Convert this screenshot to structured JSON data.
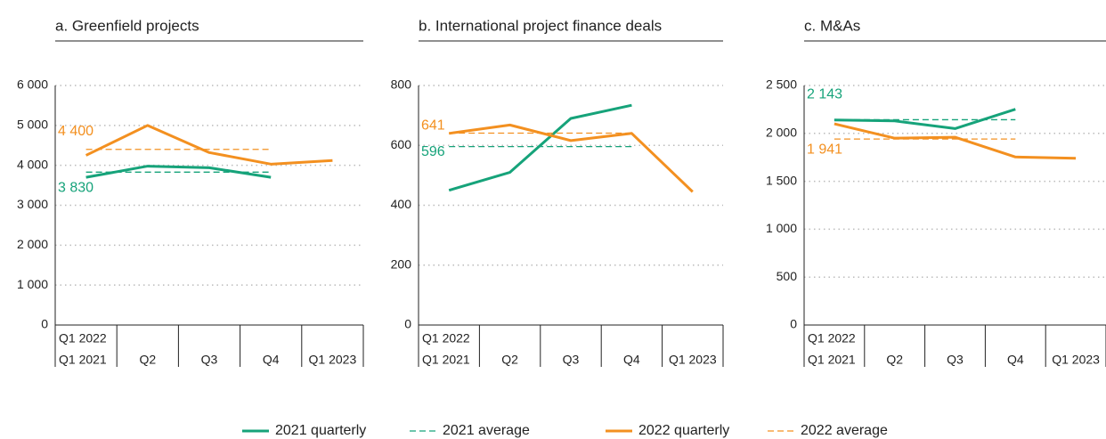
{
  "legend": [
    {
      "name": "2021 quarterly",
      "color": "#16a37a",
      "dashed": false
    },
    {
      "name": "2021 average",
      "color": "#16a37a",
      "dashed": true
    },
    {
      "name": "2022 quarterly",
      "color": "#f39020",
      "dashed": false
    },
    {
      "name": "2022 average",
      "color": "#f39020",
      "dashed": true
    }
  ],
  "chart_data": [
    {
      "type": "line",
      "title": "a. Greenfield projects",
      "categories": [
        [
          "Q1 2022",
          "Q1 2021"
        ],
        "Q2",
        "Q3",
        "Q4",
        "Q1 2023"
      ],
      "ylim": [
        0,
        6000
      ],
      "yticks": [
        0,
        {
          "value": 1000,
          "label": "1 000"
        },
        {
          "value": 2000,
          "label": "2 000"
        },
        {
          "value": 3000,
          "label": "3 000"
        },
        {
          "value": 4000,
          "label": "4 000"
        },
        {
          "value": 5000,
          "label": "5 000"
        },
        {
          "value": 6000,
          "label": "6 000"
        }
      ],
      "grid": true,
      "series": [
        {
          "values": [
            3700,
            3980,
            3940,
            3700,
            null
          ]
        },
        {
          "value": 3830,
          "value_label": "3 830"
        },
        {
          "values": [
            4250,
            5000,
            4320,
            4030,
            4120
          ]
        },
        {
          "value": 4400,
          "value_label": "4 400"
        }
      ]
    },
    {
      "type": "line",
      "title": "b. International project finance deals",
      "categories": [
        [
          "Q1 2022",
          "Q1 2021"
        ],
        "Q2",
        "Q3",
        "Q4",
        "Q1 2023"
      ],
      "ylim": [
        0,
        800
      ],
      "yticks": [
        0,
        200,
        400,
        600,
        800
      ],
      "grid": true,
      "series": [
        {
          "values": [
            450,
            510,
            690,
            734,
            null
          ]
        },
        {
          "value": 596,
          "value_label": "596"
        },
        {
          "values": [
            640,
            668,
            616,
            640,
            445
          ]
        },
        {
          "value": 641,
          "value_label": "641"
        }
      ]
    },
    {
      "type": "line",
      "title": "c. M&As",
      "categories": [
        [
          "Q1 2022",
          "Q1 2021"
        ],
        "Q2",
        "Q3",
        "Q4",
        "Q1 2023"
      ],
      "ylim": [
        0,
        2500
      ],
      "yticks": [
        0,
        500,
        {
          "value": 1000,
          "label": "1 000"
        },
        {
          "value": 1500,
          "label": "1 500"
        },
        {
          "value": 2000,
          "label": "2 000"
        },
        {
          "value": 2500,
          "label": "2 500"
        }
      ],
      "grid": true,
      "series": [
        {
          "values": [
            2140,
            2130,
            2050,
            2252,
            null
          ]
        },
        {
          "value": 2143,
          "value_label": "2 143"
        },
        {
          "values": [
            2100,
            1950,
            1960,
            1754,
            1740
          ]
        },
        {
          "value": 1941,
          "value_label": "1 941"
        }
      ]
    }
  ]
}
